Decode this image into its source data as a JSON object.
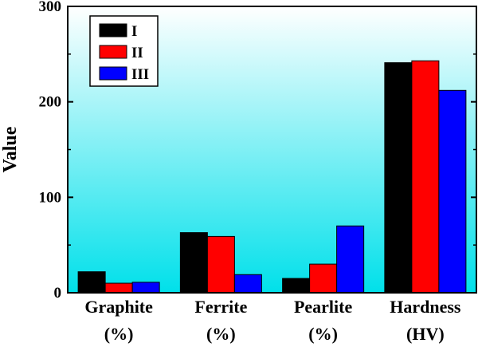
{
  "chart_data": {
    "type": "bar",
    "categories": [
      [
        "Graphite",
        "(%)"
      ],
      [
        "Ferrite",
        "(%)"
      ],
      [
        "Pearlite",
        "(%)"
      ],
      [
        "Hardness",
        "(HV)"
      ]
    ],
    "series": [
      {
        "name": "I",
        "color": "#000000",
        "values": [
          22,
          63,
          15,
          241
        ]
      },
      {
        "name": "II",
        "color": "#ff0000",
        "values": [
          10,
          59,
          30,
          243
        ]
      },
      {
        "name": "III",
        "color": "#0000ff",
        "values": [
          11,
          19,
          70,
          212
        ]
      }
    ],
    "ylabel": "Value",
    "ylim": [
      0,
      300
    ],
    "yticks": [
      "0",
      "100",
      "200",
      "300"
    ],
    "background": "gradient-cyan-to-white",
    "legend_position": "top-left",
    "grid": false
  }
}
